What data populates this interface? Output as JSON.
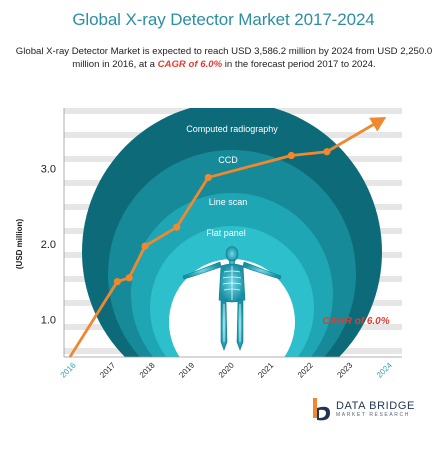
{
  "title": "Global X-ray Detector Market 2017-2024",
  "subtitle": {
    "text_before": "Global X-ray Detector Market is expected to reach USD 3,586.2 million by 2024 from USD 2,250.0  million in 2016, at a ",
    "cagr": "CAGR of 6.0%",
    "text_after": " in the forecast period 2017 to 2024."
  },
  "logo": {
    "main": "DATA BRIDGE",
    "sub": "MARKET RESEARCH"
  },
  "colors": {
    "title": "#2b8fa3",
    "line": "#f0882f",
    "cagr": "#e23b2f",
    "ring_outer": "#0d6b79",
    "ring_2": "#168a99",
    "ring_3": "#1fa6b4",
    "ring_4": "#2dbfcc",
    "ring_inner": "#ffffff"
  },
  "chart_data": {
    "type": "line",
    "ylabel": "(USD million)",
    "yticks": [
      "1.0",
      "2.0",
      "3.0"
    ],
    "ylim": [
      0.5,
      3.8
    ],
    "x_categories": [
      "2016",
      "2017",
      "2018",
      "2019",
      "2020",
      "2021",
      "2022",
      "2023",
      "2024"
    ],
    "x_highlight": [
      "2016",
      "2024"
    ],
    "series": [
      {
        "x": [
          2016.0,
          2017.2,
          2017.5,
          2017.9,
          2018.7,
          2019.5,
          2021.6,
          2022.5,
          2024.0
        ],
        "y": [
          0.5,
          1.5,
          1.55,
          1.97,
          2.22,
          2.88,
          3.17,
          3.22,
          3.68
        ]
      }
    ],
    "layers": [
      "Computed radiography",
      "CCD",
      "Line scan",
      "Flat panel"
    ],
    "annotation": "CAGR of 6.0%",
    "grid": true
  }
}
